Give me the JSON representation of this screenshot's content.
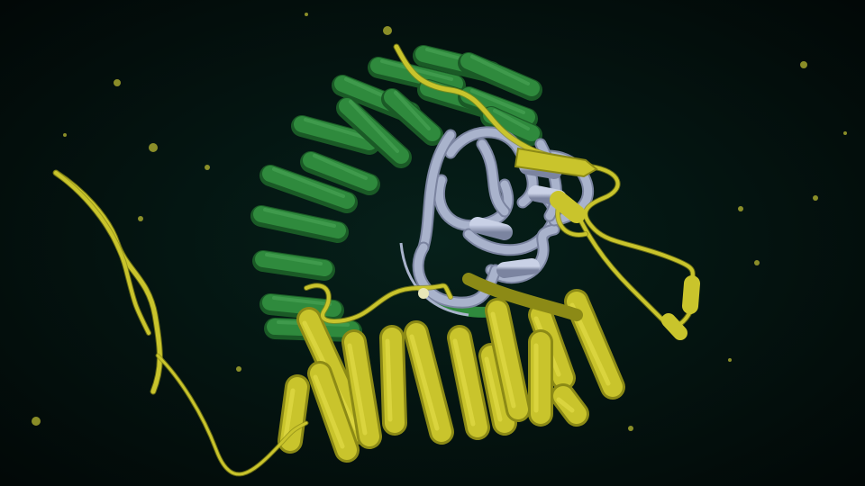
{
  "scene": {
    "subject": "protein-complex-ribbon-rendering",
    "colors": {
      "background": "#04120f",
      "vignette": "#020807",
      "green_chain": "#2f8a3d",
      "green_chain_dark": "#1a5a26",
      "green_chain_light": "#4aa656",
      "yellow_chain": "#c9c42c",
      "yellow_chain_dark": "#8c8a16",
      "yellow_chain_light": "#e6e04a",
      "grey_chain": "#a9b3cc",
      "grey_chain_dark": "#7b84a0",
      "particle": "#b8b832"
    },
    "components": [
      {
        "name": "green-solenoid-domain",
        "color_key": "green_chain"
      },
      {
        "name": "grey-globular-domain",
        "color_key": "grey_chain"
      },
      {
        "name": "yellow-helical-domain",
        "color_key": "yellow_chain"
      },
      {
        "name": "yellow-flexible-tail",
        "color_key": "yellow_chain"
      }
    ]
  }
}
